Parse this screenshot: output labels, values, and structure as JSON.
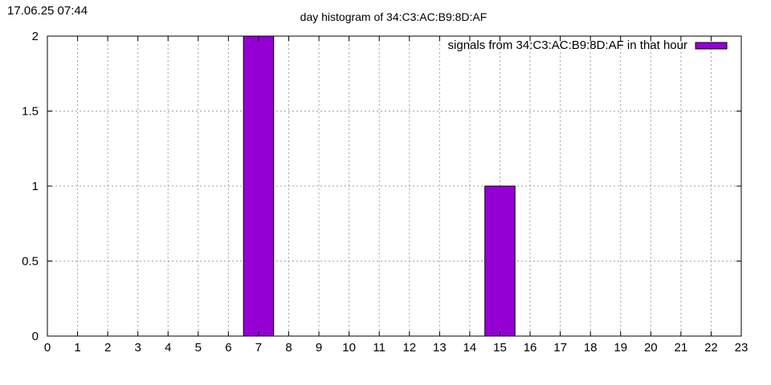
{
  "timestamp": "17.06.25 07:44",
  "colors": {
    "bar_fill": "#9400D3",
    "bar_stroke": "#000000",
    "grid": "#a0a0a0",
    "axis": "#000000",
    "background": "#ffffff"
  },
  "chart_data": {
    "type": "bar",
    "title": "day histogram of 34:C3:AC:B9:8D:AF",
    "xlabel": "",
    "ylabel": "",
    "categories": [
      "0",
      "1",
      "2",
      "3",
      "4",
      "5",
      "6",
      "7",
      "8",
      "9",
      "10",
      "11",
      "12",
      "13",
      "14",
      "15",
      "16",
      "17",
      "18",
      "19",
      "20",
      "21",
      "22",
      "23"
    ],
    "series": [
      {
        "name": "signals from 34:C3:AC:B9:8D:AF in that hour",
        "values": [
          0,
          0,
          0,
          0,
          0,
          0,
          0,
          2,
          0,
          0,
          0,
          0,
          0,
          0,
          0,
          1,
          0,
          0,
          0,
          0,
          0,
          0,
          0,
          0
        ]
      }
    ],
    "xlim": [
      0,
      23
    ],
    "ylim": [
      0,
      2
    ],
    "yticks": [
      0,
      0.5,
      1,
      1.5,
      2
    ],
    "ytick_labels": [
      "0",
      "0.5",
      "1",
      "1.5",
      "2"
    ],
    "xticks": [
      0,
      1,
      2,
      3,
      4,
      5,
      6,
      7,
      8,
      9,
      10,
      11,
      12,
      13,
      14,
      15,
      16,
      17,
      18,
      19,
      20,
      21,
      22,
      23
    ],
    "bar_width": 1,
    "grid": true,
    "grid_style": "dotted",
    "legend_position": "top-right"
  }
}
